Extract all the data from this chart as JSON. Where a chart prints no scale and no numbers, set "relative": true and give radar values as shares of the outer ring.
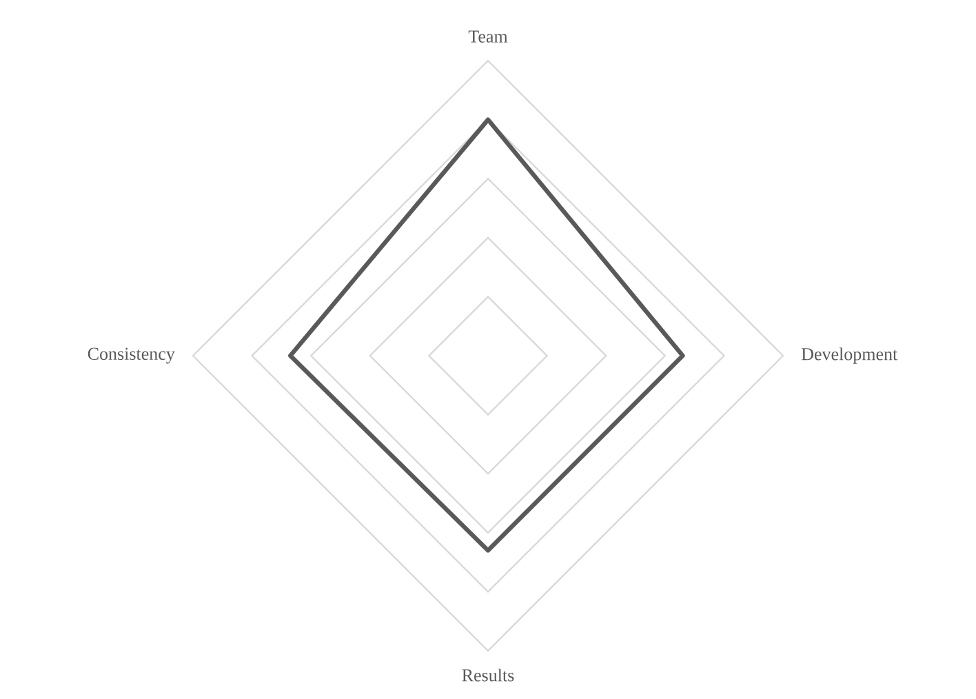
{
  "chart_data": {
    "type": "radar",
    "relative": true,
    "grid": true,
    "marker": "none",
    "categories": [
      "Team",
      "Development",
      "Results",
      "Consistency"
    ],
    "series": [
      {
        "color": "#595959",
        "values": [
          0.8,
          0.66,
          0.66,
          0.67
        ]
      }
    ]
  }
}
